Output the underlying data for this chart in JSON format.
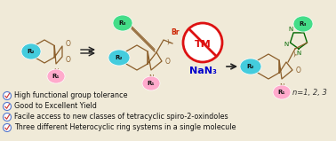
{
  "background_color": "#f0ead8",
  "bullet_points": [
    "High functional group tolerance",
    "Good to Excellent Yield",
    "Facile access to new classes of tetracyclic spiro-2-oxindoles",
    "Three different Heterocyclic ring systems in a single molecule"
  ],
  "n_text": "n=1, 2, 3",
  "arrow_color": "#222222",
  "tm_circle_color": "#dd1111",
  "naan3_color": "#0000cc",
  "cyan_color": "#44ccdd",
  "pink_color": "#ffaacc",
  "green_color": "#44dd88",
  "struct_color": "#8b5e2a",
  "triazole_color": "#006600",
  "blue_color": "#4488cc",
  "check_check_color": "#cc3333",
  "check_ring_color": "#5577cc",
  "bullet_fontsize": 5.8,
  "figsize": [
    3.78,
    1.59
  ],
  "dpi": 100
}
